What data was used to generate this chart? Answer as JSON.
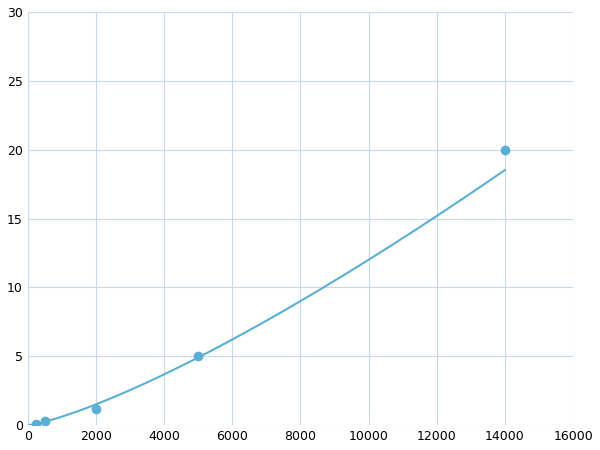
{
  "x_points": [
    250,
    500,
    2000,
    5000,
    14000
  ],
  "y_points": [
    0.1,
    0.3,
    1.2,
    5.0,
    20.0
  ],
  "line_color": "#5bafd6",
  "marker_color": "#5bafd6",
  "marker_size": 6,
  "line_width": 1.5,
  "xlim": [
    0,
    16000
  ],
  "ylim": [
    0,
    30
  ],
  "xticks": [
    0,
    2000,
    4000,
    6000,
    8000,
    10000,
    12000,
    14000,
    16000
  ],
  "yticks": [
    0,
    5,
    10,
    15,
    20,
    25,
    30
  ],
  "grid_color": "#c8d8e8",
  "background_color": "#ffffff",
  "figsize": [
    6.0,
    4.5
  ],
  "dpi": 100
}
